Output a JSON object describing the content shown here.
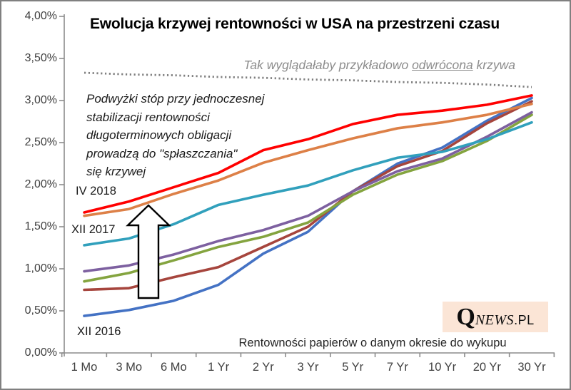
{
  "title": "Ewolucja krzywej rentowności w USA na przestrzeni czasu",
  "annotations": {
    "inverted_note_part1": "Tak wyglądałaby przykładowo ",
    "inverted_note_underlined": "odwrócona",
    "inverted_note_part2": " krzywa",
    "flattening_note_lines": [
      "Podwyżki stóp przy jednoczesnej",
      "stabilizacji rentowności",
      "długoterminowych obligacji",
      "prowadzą do \"spłaszczania\"",
      "się krzywej"
    ],
    "label_iv_2018": "IV 2018",
    "label_xii_2017": "XII 2017",
    "label_xii_2016": "XII 2016",
    "arrow": "up-arrow-white-black-outline"
  },
  "axes": {
    "x_caption": "Rentowności papierów o danym okresie do wykupu",
    "y_tick_labels_top_down": [
      "4,00%",
      "3,50%",
      "3,00%",
      "2,50%",
      "2,00%",
      "1,50%",
      "1,00%",
      "0,50%",
      "0,00%"
    ],
    "x_tick_labels": [
      "1 Mo",
      "3 Mo",
      "6 Mo",
      "1 Yr",
      "2 Yr",
      "3 Yr",
      "5 Yr",
      "7 Yr",
      "10 Yr",
      "20 Yr",
      "30 Yr"
    ]
  },
  "logo": {
    "q": "Q",
    "news": "NEWS",
    "pl": ".PL"
  },
  "chart_data": {
    "type": "line",
    "title": "Ewolucja krzywej rentowności w USA na przestrzeni czasu",
    "xlabel": "Rentowności papierów o danym okresie do wykupu",
    "ylabel": "",
    "ylim": [
      0,
      4
    ],
    "ytick_step": 0.5,
    "grid": false,
    "legend_position": "none",
    "categories": [
      "1 Mo",
      "3 Mo",
      "6 Mo",
      "1 Yr",
      "2 Yr",
      "3 Yr",
      "5 Yr",
      "7 Yr",
      "10 Yr",
      "20 Yr",
      "30 Yr"
    ],
    "series": [
      {
        "id": "blue",
        "chart_label": "XII 2016",
        "color": "#4472C4",
        "values": [
          0.44,
          0.51,
          0.62,
          0.81,
          1.18,
          1.44,
          1.92,
          2.25,
          2.44,
          2.76,
          3.03
        ]
      },
      {
        "id": "dark-red",
        "chart_label": null,
        "color": "#A6453D",
        "values": [
          0.75,
          0.77,
          0.9,
          1.02,
          1.26,
          1.5,
          1.92,
          2.22,
          2.4,
          2.73,
          2.99
        ]
      },
      {
        "id": "green",
        "chart_label": null,
        "color": "#84A43F",
        "values": [
          0.85,
          0.95,
          1.1,
          1.26,
          1.38,
          1.55,
          1.88,
          2.12,
          2.28,
          2.52,
          2.83
        ]
      },
      {
        "id": "purple",
        "chart_label": null,
        "color": "#7D60A0",
        "values": [
          0.97,
          1.04,
          1.17,
          1.33,
          1.46,
          1.63,
          1.92,
          2.16,
          2.31,
          2.57,
          2.86
        ]
      },
      {
        "id": "teal",
        "chart_label": "XII 2017",
        "color": "#31A0BC",
        "values": [
          1.28,
          1.36,
          1.53,
          1.76,
          1.88,
          1.99,
          2.17,
          2.32,
          2.39,
          2.54,
          2.74
        ]
      },
      {
        "id": "orange",
        "chart_label": null,
        "color": "#DD8047",
        "values": [
          1.63,
          1.71,
          1.89,
          2.05,
          2.26,
          2.41,
          2.55,
          2.67,
          2.74,
          2.83,
          2.96
        ]
      },
      {
        "id": "red",
        "chart_label": "IV 2018",
        "color": "#FF0000",
        "values": [
          1.67,
          1.8,
          1.97,
          2.14,
          2.41,
          2.54,
          2.72,
          2.83,
          2.88,
          2.95,
          3.06
        ]
      }
    ],
    "reference_line": {
      "id": "inverted-curve-example",
      "style": "dotted",
      "color": "#7F7F7F",
      "values": [
        3.33,
        3.31,
        3.3,
        3.28,
        3.27,
        3.25,
        3.24,
        3.22,
        3.21,
        3.19,
        3.16
      ]
    }
  }
}
